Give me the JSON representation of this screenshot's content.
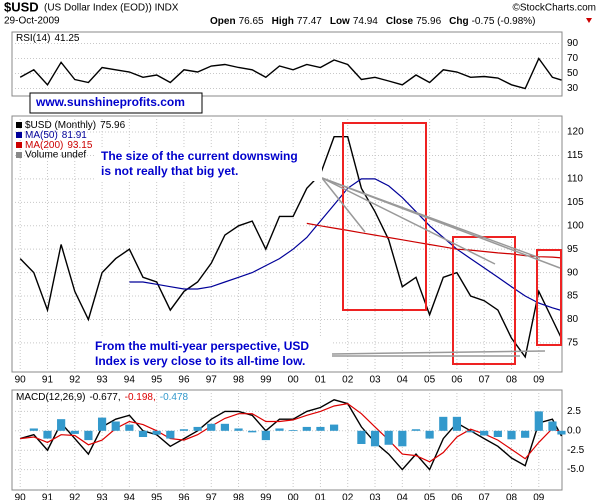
{
  "header": {
    "symbol": "$USD",
    "name": "(US Dollar Index (EOD)) INDX",
    "source": "©StockCharts.com",
    "date": "29-Oct-2009",
    "quote": [
      {
        "label": "Open",
        "value": "76.65"
      },
      {
        "label": "High",
        "value": "77.47"
      },
      {
        "label": "Low",
        "value": "74.94"
      },
      {
        "label": "Close",
        "value": "75.96"
      },
      {
        "label": "Chg",
        "value": "-0.75 (-0.98%)"
      }
    ],
    "website": "www.sunshineprofits.com"
  },
  "chart_data": [
    {
      "type": "line",
      "xlim": [
        1989.7,
        2009.85
      ],
      "ylim": [
        20,
        100
      ],
      "yticks": [
        30,
        50,
        70,
        90
      ],
      "grid": true,
      "x": [
        1990.0,
        1990.5,
        1991.0,
        1991.5,
        1992.0,
        1992.5,
        1993.0,
        1993.5,
        1994.0,
        1994.5,
        1995.0,
        1995.5,
        1996.0,
        1996.5,
        1997.0,
        1997.5,
        1998.0,
        1998.5,
        1999.0,
        1999.5,
        2000.0,
        2000.5,
        2001.0,
        2001.5,
        2002.0,
        2002.5,
        2003.0,
        2003.5,
        2004.0,
        2004.5,
        2005.0,
        2005.5,
        2006.0,
        2006.5,
        2007.0,
        2007.5,
        2008.0,
        2008.5,
        2009.0,
        2009.5,
        2009.83
      ],
      "series": [
        {
          "name": "RSI(14)",
          "color": "#000000",
          "values": [
            45,
            55,
            35,
            65,
            42,
            38,
            58,
            55,
            52,
            45,
            48,
            38,
            55,
            52,
            60,
            62,
            58,
            55,
            45,
            60,
            55,
            62,
            58,
            68,
            62,
            42,
            45,
            40,
            35,
            48,
            38,
            55,
            52,
            45,
            46,
            44,
            35,
            30,
            70,
            45,
            41.25
          ]
        }
      ]
    },
    {
      "type": "line",
      "xlim": [
        1989.7,
        2009.85
      ],
      "ylim": [
        69,
        123
      ],
      "yticks": [
        75,
        80,
        85,
        90,
        95,
        100,
        105,
        110,
        115,
        120
      ],
      "grid": true,
      "xticks": [
        {
          "value": 1990,
          "label": "90"
        },
        {
          "value": 1991,
          "label": "91"
        },
        {
          "value": 1992,
          "label": "92"
        },
        {
          "value": 1993,
          "label": "93"
        },
        {
          "value": 1994,
          "label": "94"
        },
        {
          "value": 1995,
          "label": "95"
        },
        {
          "value": 1996,
          "label": "96"
        },
        {
          "value": 1997,
          "label": "97"
        },
        {
          "value": 1998,
          "label": "98"
        },
        {
          "value": 1999,
          "label": "99"
        },
        {
          "value": 2000,
          "label": "00"
        },
        {
          "value": 2001,
          "label": "01"
        },
        {
          "value": 2002,
          "label": "02"
        },
        {
          "value": 2003,
          "label": "03"
        },
        {
          "value": 2004,
          "label": "04"
        },
        {
          "value": 2005,
          "label": "05"
        },
        {
          "value": 2006,
          "label": "06"
        },
        {
          "value": 2007,
          "label": "07"
        },
        {
          "value": 2008,
          "label": "08"
        },
        {
          "value": 2009,
          "label": "09"
        }
      ],
      "x": [
        1990.0,
        1990.5,
        1991.0,
        1991.5,
        1992.0,
        1992.5,
        1993.0,
        1993.5,
        1994.0,
        1994.5,
        1995.0,
        1995.5,
        1996.0,
        1996.5,
        1997.0,
        1997.5,
        1998.0,
        1998.5,
        1999.0,
        1999.5,
        2000.0,
        2000.5,
        2001.0,
        2001.5,
        2002.0,
        2002.5,
        2003.0,
        2003.5,
        2004.0,
        2004.5,
        2005.0,
        2005.5,
        2006.0,
        2006.5,
        2007.0,
        2007.5,
        2008.0,
        2008.5,
        2009.0,
        2009.5,
        2009.83
      ],
      "series": [
        {
          "name": "$USD (Monthly)",
          "color": "#000000",
          "values": [
            93,
            90,
            82,
            96,
            86,
            80,
            90,
            93,
            95,
            89,
            88,
            82,
            86,
            88,
            92,
            98,
            100,
            101,
            95,
            102,
            102,
            108,
            111,
            119,
            119,
            108,
            103,
            97,
            87,
            89,
            81,
            89,
            90,
            85,
            84,
            82,
            76,
            72,
            86,
            80,
            75.96
          ]
        },
        {
          "name": "MA(50)",
          "color": "#000099",
          "values": [
            null,
            null,
            null,
            null,
            null,
            null,
            null,
            null,
            88,
            88,
            87.5,
            87,
            86.5,
            86.5,
            87,
            88,
            89,
            90,
            91.5,
            93,
            95,
            97.5,
            101,
            104.5,
            108,
            110,
            110,
            108.5,
            106,
            103,
            100,
            97.5,
            95,
            93,
            91,
            89,
            87,
            85,
            83.5,
            82.5,
            81.91
          ]
        },
        {
          "name": "MA(200)",
          "color": "#cc0000",
          "values": [
            null,
            null,
            null,
            null,
            null,
            null,
            null,
            null,
            null,
            null,
            null,
            null,
            null,
            null,
            null,
            null,
            null,
            null,
            null,
            null,
            null,
            100.5,
            100,
            99.5,
            99,
            98.5,
            98,
            97.5,
            97,
            96.5,
            96,
            95.5,
            95,
            94.8,
            94.5,
            94.2,
            94,
            93.6,
            93.4,
            93.3,
            93.15
          ]
        }
      ],
      "legend_note": "Volume undef",
      "annotations": [
        {
          "lines": [
            "The size of the current downswing",
            "is not really that big yet."
          ]
        },
        {
          "lines": [
            "From the multi-year perspective, USD",
            "Index is very close to its all-time low."
          ]
        }
      ]
    },
    {
      "type": "line",
      "xlim": [
        1989.7,
        2009.85
      ],
      "ylim": [
        -7.5,
        5
      ],
      "yticks": [
        2.5,
        {
          "value": 0,
          "label": "0.0"
        },
        -2.5,
        {
          "value": -5,
          "label": "-5.0"
        }
      ],
      "grid": true,
      "xticks": [
        {
          "value": 1990,
          "label": "90"
        },
        {
          "value": 1991,
          "label": "91"
        },
        {
          "value": 1992,
          "label": "92"
        },
        {
          "value": 1993,
          "label": "93"
        },
        {
          "value": 1994,
          "label": "94"
        },
        {
          "value": 1995,
          "label": "95"
        },
        {
          "value": 1996,
          "label": "96"
        },
        {
          "value": 1997,
          "label": "97"
        },
        {
          "value": 1998,
          "label": "98"
        },
        {
          "value": 1999,
          "label": "99"
        },
        {
          "value": 2000,
          "label": "00"
        },
        {
          "value": 2001,
          "label": "01"
        },
        {
          "value": 2002,
          "label": "02"
        },
        {
          "value": 2003,
          "label": "03"
        },
        {
          "value": 2004,
          "label": "04"
        },
        {
          "value": 2005,
          "label": "05"
        },
        {
          "value": 2006,
          "label": "06"
        },
        {
          "value": 2007,
          "label": "07"
        },
        {
          "value": 2008,
          "label": "08"
        },
        {
          "value": 2009,
          "label": "09"
        }
      ],
      "x": [
        1990.0,
        1990.5,
        1991.0,
        1991.5,
        1992.0,
        1992.5,
        1993.0,
        1993.5,
        1994.0,
        1994.5,
        1995.0,
        1995.5,
        1996.0,
        1996.5,
        1997.0,
        1997.5,
        1998.0,
        1998.5,
        1999.0,
        1999.5,
        2000.0,
        2000.5,
        2001.0,
        2001.5,
        2002.0,
        2002.5,
        2003.0,
        2003.5,
        2004.0,
        2004.5,
        2005.0,
        2005.5,
        2006.0,
        2006.5,
        2007.0,
        2007.5,
        2008.0,
        2008.5,
        2009.0,
        2009.5,
        2009.83
      ],
      "legend_separator": ",",
      "series": [
        {
          "name": "MACD(12,26,9)",
          "color": "#000000",
          "values": [
            -1,
            -0.5,
            -2.5,
            1,
            -1,
            -3,
            0.5,
            1.5,
            2,
            0,
            -0.5,
            -2,
            -1,
            0,
            1.5,
            2.5,
            2.5,
            2,
            0,
            1.5,
            1.5,
            2.5,
            3,
            4,
            3.5,
            0.5,
            -1.5,
            -3,
            -5,
            -3,
            -5,
            -1,
            1,
            0,
            -1,
            -2,
            -3.5,
            -4.5,
            1,
            1.5,
            -0.677
          ]
        },
        {
          "color": "#dd0000",
          "values": [
            -1,
            -0.8,
            -1.5,
            -0.5,
            -0.6,
            -1.8,
            -1.2,
            0.3,
            1.2,
            0.8,
            0,
            -1,
            -1.2,
            -0.5,
            0.6,
            1.6,
            2.2,
            2.2,
            1.2,
            1.2,
            1.4,
            2,
            2.5,
            3.2,
            3.5,
            2.2,
            0.5,
            -1.2,
            -3,
            -3.2,
            -4,
            -2.8,
            -0.8,
            0.2,
            -0.4,
            -1.2,
            -2.4,
            -3.6,
            -1.5,
            0.3,
            -0.198
          ]
        },
        {
          "color": "#3399cc",
          "kind": "histogram",
          "values": [
            0,
            0.3,
            -1,
            1.5,
            -0.4,
            -1.2,
            1.7,
            1.2,
            0.8,
            -0.8,
            -0.5,
            -1,
            0.2,
            0.5,
            0.9,
            0.9,
            0.3,
            -0.2,
            -1.2,
            0.3,
            0.1,
            0.5,
            0.5,
            0.8,
            0,
            -1.7,
            -2,
            -1.8,
            -2,
            0.2,
            -1,
            1.8,
            1.8,
            -0.2,
            -0.6,
            -0.8,
            -1.1,
            -0.9,
            2.5,
            1.2,
            -0.478
          ]
        }
      ]
    }
  ]
}
